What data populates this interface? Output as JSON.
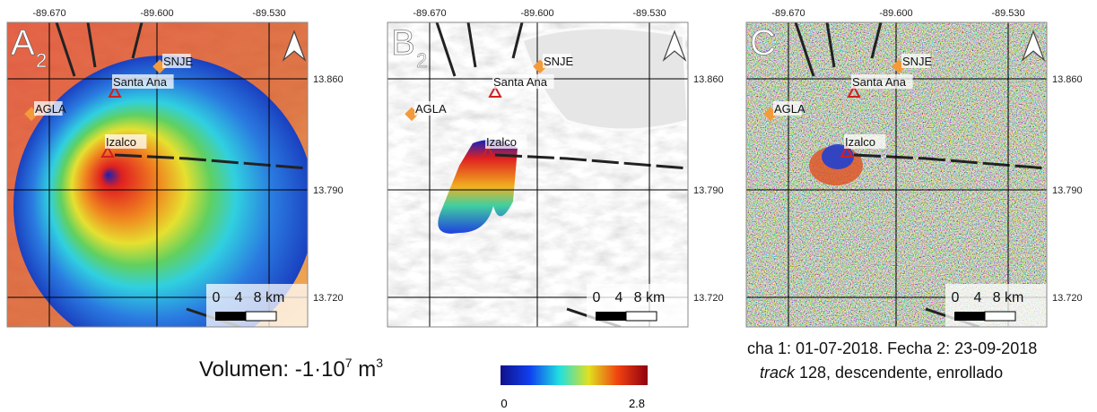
{
  "panels": [
    {
      "label": "A",
      "subscript": "2"
    },
    {
      "label": "B",
      "subscript": "2"
    },
    {
      "label": "C"
    }
  ],
  "lon_labels": [
    "-89.670",
    "-89.600",
    "-89.530"
  ],
  "lat_labels": [
    "13.860",
    "13.790",
    "13.720"
  ],
  "places": [
    "SNJE",
    "Santa Ana",
    "AGLA",
    "Izalco"
  ],
  "scale_labels": [
    "0",
    "4",
    "8 km"
  ],
  "volume": {
    "text": "Volumen: -1·10",
    "exponent": "7",
    "unit": " m",
    "unit_exponent": "3"
  },
  "colorbar": {
    "min": 0,
    "max": 2.8
  },
  "caption": {
    "line1": "cha 1: 01-07-2018. Fecha 2: 23-09-2018",
    "line2_italic": "track",
    "line2": " 128, descendente, enrollado"
  }
}
